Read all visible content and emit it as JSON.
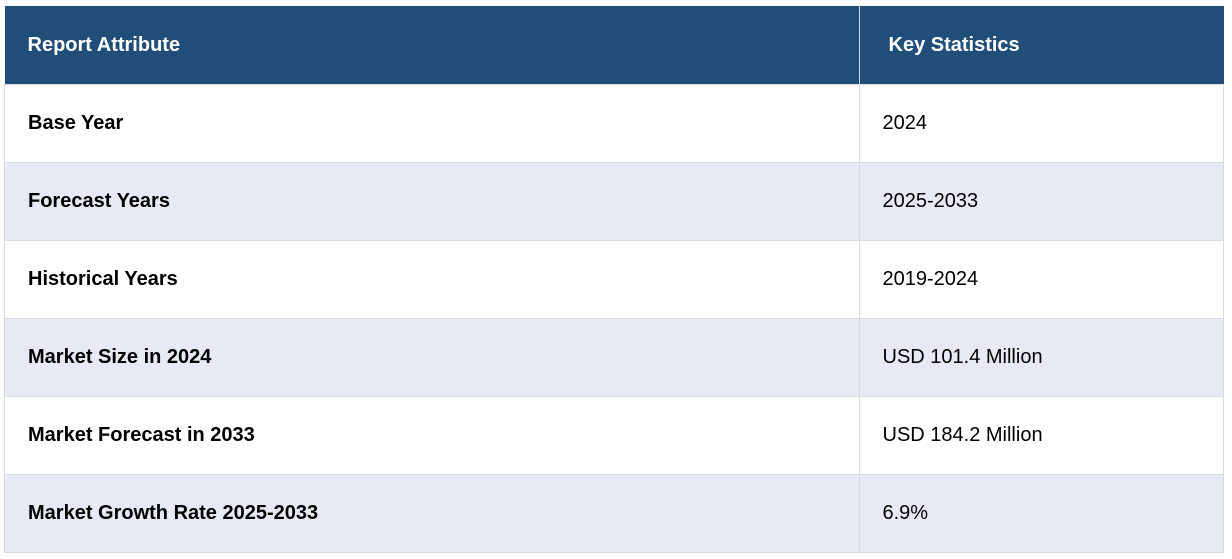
{
  "table": {
    "header": [
      "Report Attribute",
      "Key Statistics"
    ],
    "rows": [
      [
        "Base Year",
        "2024"
      ],
      [
        "Forecast Years",
        "2025-2033"
      ],
      [
        "Historical Years",
        "2019-2024"
      ],
      [
        "Market Size in 2024",
        "USD 101.4 Million"
      ],
      [
        "Market Forecast in 2033",
        "USD 184.2 Million"
      ],
      [
        "Market Growth Rate 2025-2033",
        "6.9%"
      ]
    ]
  }
}
